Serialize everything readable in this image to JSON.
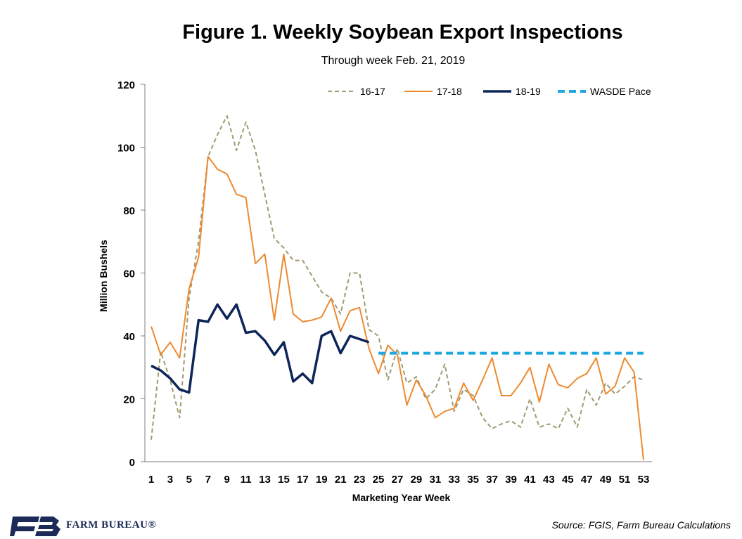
{
  "chart_data": {
    "type": "line",
    "title": "Figure 1. Weekly Soybean Export Inspections",
    "subtitle": "Through week Feb. 21, 2019",
    "xlabel": "Marketing Year Week",
    "ylabel": "Million Bushels",
    "ylim": [
      0,
      120
    ],
    "yticks": [
      0,
      20,
      40,
      60,
      80,
      100,
      120
    ],
    "xlim": [
      1,
      53
    ],
    "xticks": [
      1,
      3,
      5,
      7,
      9,
      11,
      13,
      15,
      17,
      19,
      21,
      23,
      25,
      27,
      29,
      31,
      33,
      35,
      37,
      39,
      41,
      43,
      45,
      47,
      49,
      51,
      53
    ],
    "grid": false,
    "legend": "top-right",
    "series": [
      {
        "name": "16-17",
        "color": "#a09a72",
        "style": "dashed",
        "x": [
          1,
          2,
          3,
          4,
          5,
          6,
          7,
          8,
          9,
          10,
          11,
          12,
          13,
          14,
          15,
          16,
          17,
          18,
          19,
          20,
          21,
          22,
          23,
          24,
          25,
          26,
          27,
          28,
          29,
          30,
          31,
          32,
          33,
          34,
          35,
          36,
          37,
          38,
          39,
          40,
          41,
          42,
          43,
          44,
          45,
          46,
          47,
          48,
          49,
          50,
          51,
          52,
          53
        ],
        "values": [
          7,
          35,
          26,
          14,
          52,
          70,
          97,
          104,
          110,
          99,
          108,
          99,
          85,
          71,
          68,
          64,
          64,
          59,
          54,
          52,
          47,
          60,
          60,
          42,
          40,
          26,
          36,
          25,
          27,
          20,
          23,
          31,
          16,
          23,
          21,
          14,
          10.5,
          12,
          13,
          11,
          20,
          11,
          12,
          10.5,
          17,
          11,
          23,
          18,
          25,
          21.5,
          24,
          27,
          26
        ]
      },
      {
        "name": "17-18",
        "color": "#ed8a2f",
        "style": "solid",
        "x": [
          1,
          2,
          3,
          4,
          5,
          6,
          7,
          8,
          9,
          10,
          11,
          12,
          13,
          14,
          15,
          16,
          17,
          18,
          19,
          20,
          21,
          22,
          23,
          24,
          25,
          26,
          27,
          28,
          29,
          30,
          31,
          32,
          33,
          34,
          35,
          36,
          37,
          38,
          39,
          40,
          41,
          42,
          43,
          44,
          45,
          46,
          47,
          48,
          49,
          50,
          51,
          52,
          53
        ],
        "values": [
          43,
          34,
          38,
          33,
          55,
          65,
          97,
          93,
          91.5,
          85,
          84,
          63,
          66,
          45,
          66,
          47,
          44.5,
          45,
          46,
          52,
          41.5,
          48,
          49,
          36,
          28,
          37,
          34,
          18,
          26,
          21,
          14,
          16,
          17,
          25,
          19.5,
          26,
          33,
          21,
          21,
          25,
          30,
          19,
          31,
          24.5,
          23.5,
          26.5,
          28,
          33,
          21.5,
          24,
          33,
          28.5,
          0.5
        ]
      },
      {
        "name": "18-19",
        "color": "#0d2558",
        "style": "thick",
        "x": [
          1,
          2,
          3,
          4,
          5,
          6,
          7,
          8,
          9,
          10,
          11,
          12,
          13,
          14,
          15,
          16,
          17,
          18,
          19,
          20,
          21,
          22,
          23,
          24
        ],
        "values": [
          30.5,
          29,
          26.5,
          23,
          22,
          45,
          44.5,
          50,
          45.5,
          50,
          41,
          41.5,
          38.5,
          34,
          38,
          25.5,
          28,
          25,
          40,
          41.5,
          34.5,
          40,
          39,
          38
        ]
      },
      {
        "name": "WASDE Pace",
        "color": "#1fa7e0",
        "style": "dashed-thick",
        "x": [
          25,
          53
        ],
        "values": [
          34.5,
          34.5
        ]
      }
    ]
  },
  "footer": {
    "logo_text": "FARM BUREAU®",
    "source": "Source: FGIS, Farm Bureau Calculations"
  }
}
